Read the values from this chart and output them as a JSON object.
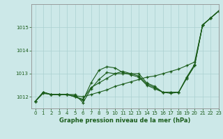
{
  "title": "Graphe pression niveau de la mer (hPa)",
  "bg_color": "#cce8e8",
  "grid_color": "#aad0d0",
  "line_color": "#1a5c1a",
  "xlim": [
    -0.5,
    23
  ],
  "ylim": [
    1011.5,
    1016.0
  ],
  "yticks": [
    1012,
    1013,
    1014,
    1015
  ],
  "xticks": [
    0,
    1,
    2,
    3,
    4,
    5,
    6,
    7,
    8,
    9,
    10,
    11,
    12,
    13,
    14,
    15,
    16,
    17,
    18,
    19,
    20,
    21,
    22,
    23
  ],
  "series": [
    [
      1011.8,
      1012.2,
      1012.1,
      1012.1,
      1012.1,
      1012.1,
      1011.75,
      1012.35,
      1012.75,
      1013.05,
      1013.0,
      1013.0,
      1013.0,
      1013.0,
      1012.6,
      1012.45,
      1012.2,
      1012.15,
      1012.2,
      1012.85,
      1013.4,
      1015.1,
      1015.4,
      1015.7
    ],
    [
      1011.8,
      1012.2,
      1012.1,
      1012.1,
      1012.1,
      1012.0,
      1011.85,
      1012.6,
      1013.15,
      1013.3,
      1013.25,
      1013.05,
      1012.95,
      1012.85,
      1012.5,
      1012.35,
      1012.2,
      1012.2,
      1012.2,
      1012.8,
      1013.35,
      1015.1,
      1015.4,
      1015.7
    ],
    [
      1011.8,
      1012.2,
      1012.1,
      1012.1,
      1012.1,
      1012.0,
      1011.9,
      1012.4,
      1012.6,
      1012.8,
      1013.0,
      1013.1,
      1013.0,
      1012.9,
      1012.55,
      1012.4,
      1012.2,
      1012.2,
      1012.2,
      1012.8,
      1013.35,
      1015.1,
      1015.4,
      1015.7
    ],
    [
      1011.8,
      1012.15,
      1012.1,
      1012.1,
      1012.1,
      1012.05,
      1012.0,
      1012.1,
      1012.2,
      1012.3,
      1012.45,
      1012.55,
      1012.65,
      1012.75,
      1012.85,
      1012.9,
      1013.0,
      1013.1,
      1013.2,
      1013.35,
      1013.5,
      1015.1,
      1015.4,
      1015.7
    ]
  ]
}
